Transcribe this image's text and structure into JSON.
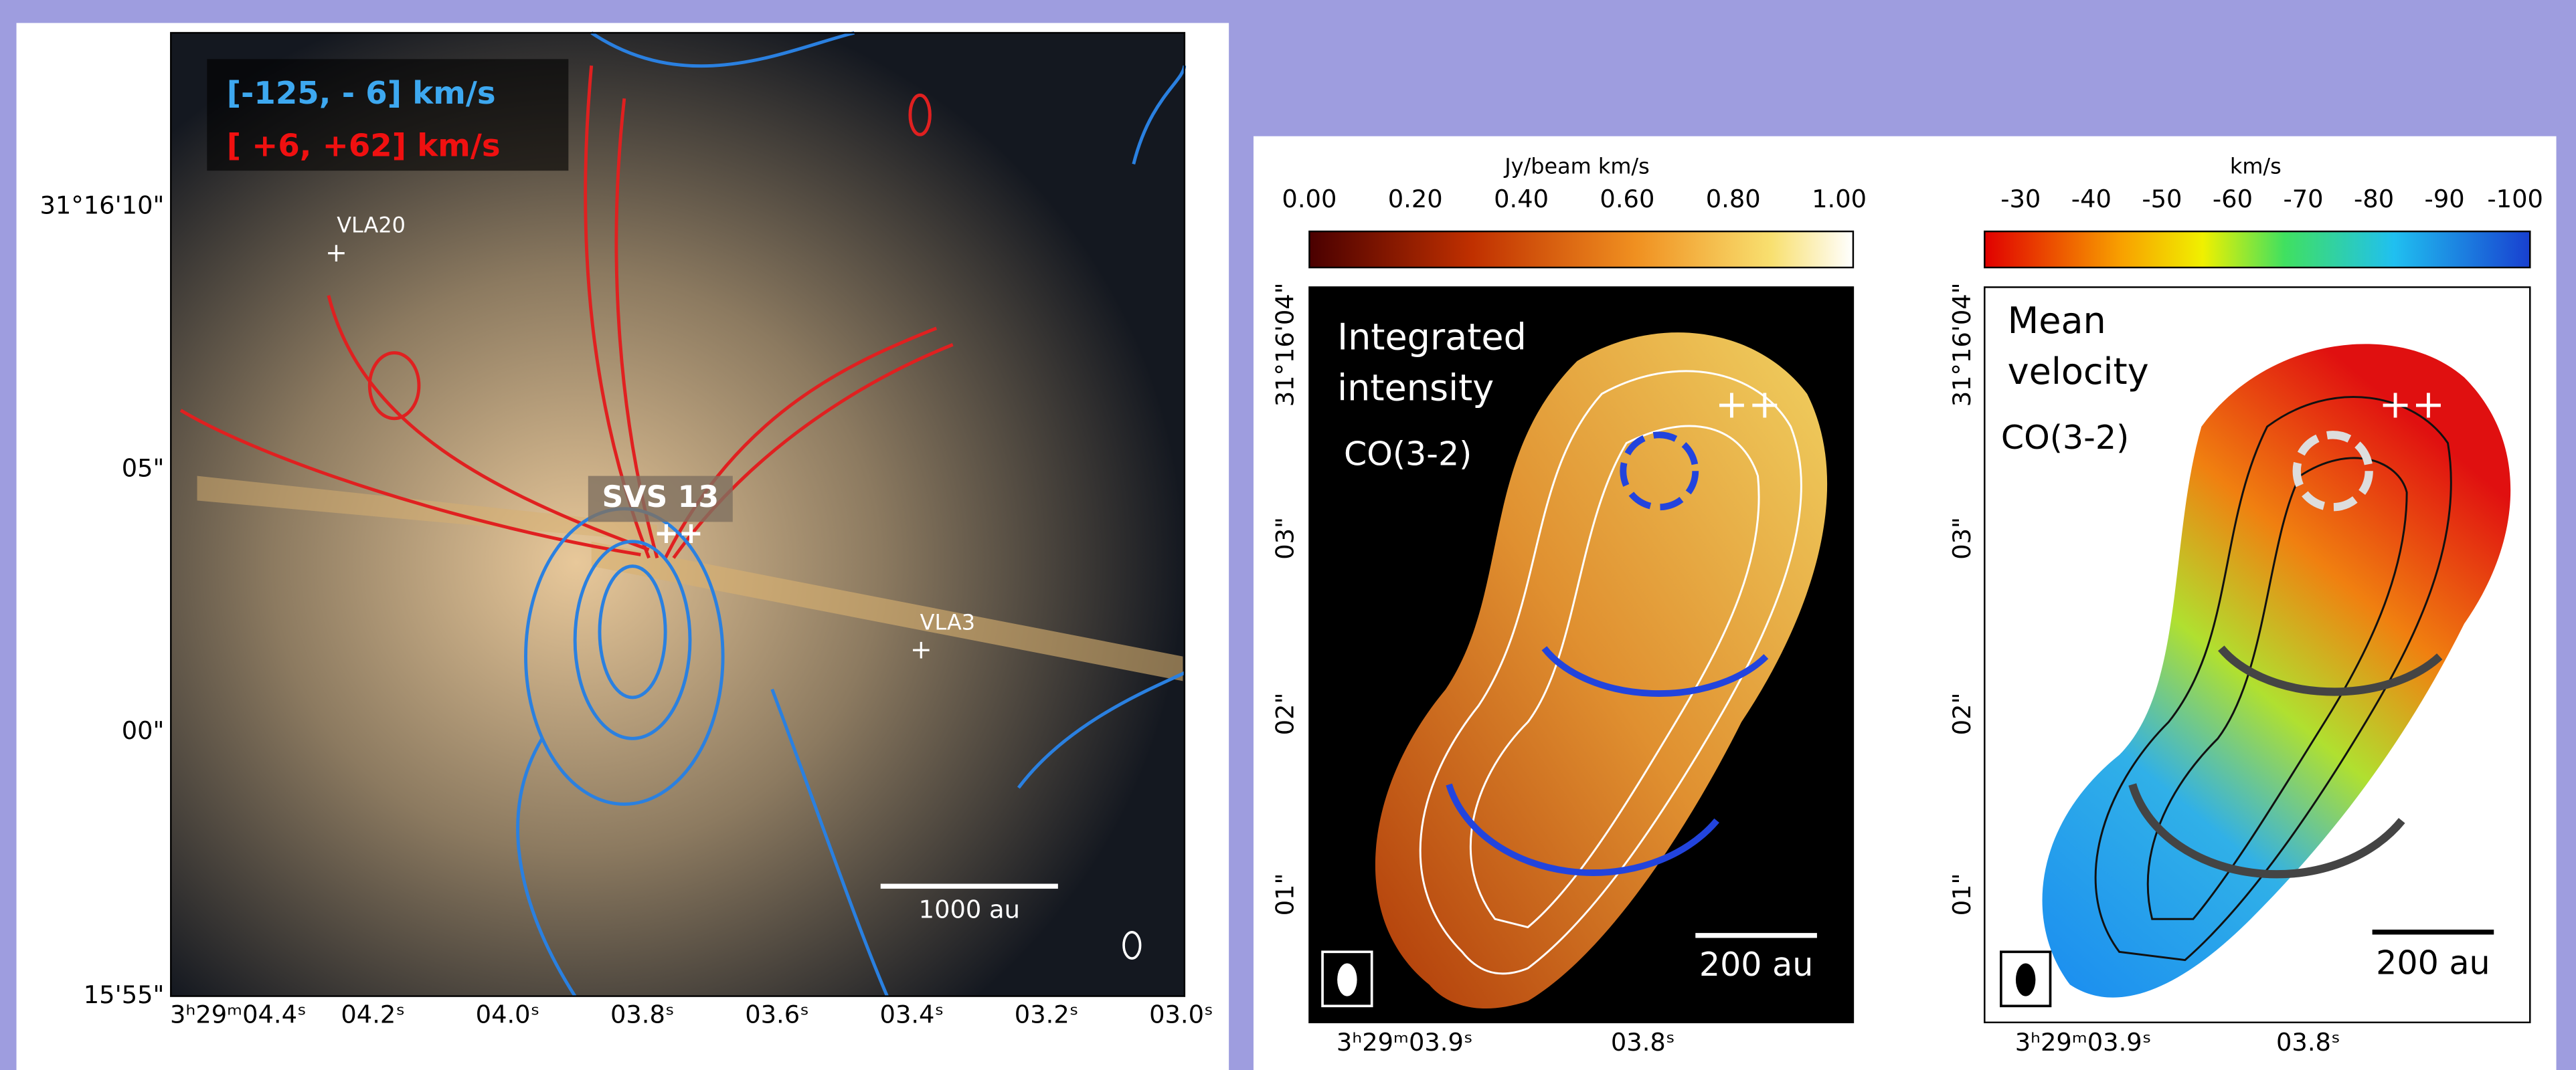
{
  "left_panel": {
    "legend": [
      "[-125, -  6] km/s",
      "[   +6, +62] km/s"
    ],
    "labels": {
      "vla20": "VLA20",
      "svs13": "SVS 13",
      "vla3": "VLA3",
      "scale_bar": "1000 au"
    },
    "yticks": [
      "31°16'10\"",
      "05\"",
      "00\"",
      "15'55\""
    ],
    "xticks": [
      "3ʰ29ᵐ04.4ˢ",
      "04.2ˢ",
      "04.0ˢ",
      "03.8ˢ",
      "03.6ˢ",
      "03.4ˢ",
      "03.2ˢ",
      "03.0ˢ"
    ]
  },
  "middle_panel": {
    "colorbar_label": "Jy/beam km/s",
    "colorbar_ticks": [
      "0.00",
      "0.20",
      "0.40",
      "0.60",
      "0.80",
      "1.00"
    ],
    "title_lines": [
      "Integrated",
      "intensity"
    ],
    "line": "CO(3-2)",
    "scale_bar": "200 au",
    "yticks": [
      "31°16'04\"",
      "03\"",
      "02\"",
      "01\""
    ],
    "xticks": [
      "3ʰ29ᵐ03.9ˢ",
      "03.8ˢ"
    ]
  },
  "right_panel": {
    "colorbar_label": "km/s",
    "colorbar_ticks": [
      "-30",
      "-40",
      "-50",
      "-60",
      "-70",
      "-80",
      "-90",
      "-100"
    ],
    "title_lines": [
      "Mean",
      "velocity"
    ],
    "line": "CO(3-2)",
    "scale_bar": "200 au",
    "yticks": [
      "31°16'04\"",
      "03\"",
      "02\"",
      "01\""
    ],
    "xticks": [
      "3ʰ29ᵐ03.9ˢ",
      "03.8ˢ"
    ]
  }
}
